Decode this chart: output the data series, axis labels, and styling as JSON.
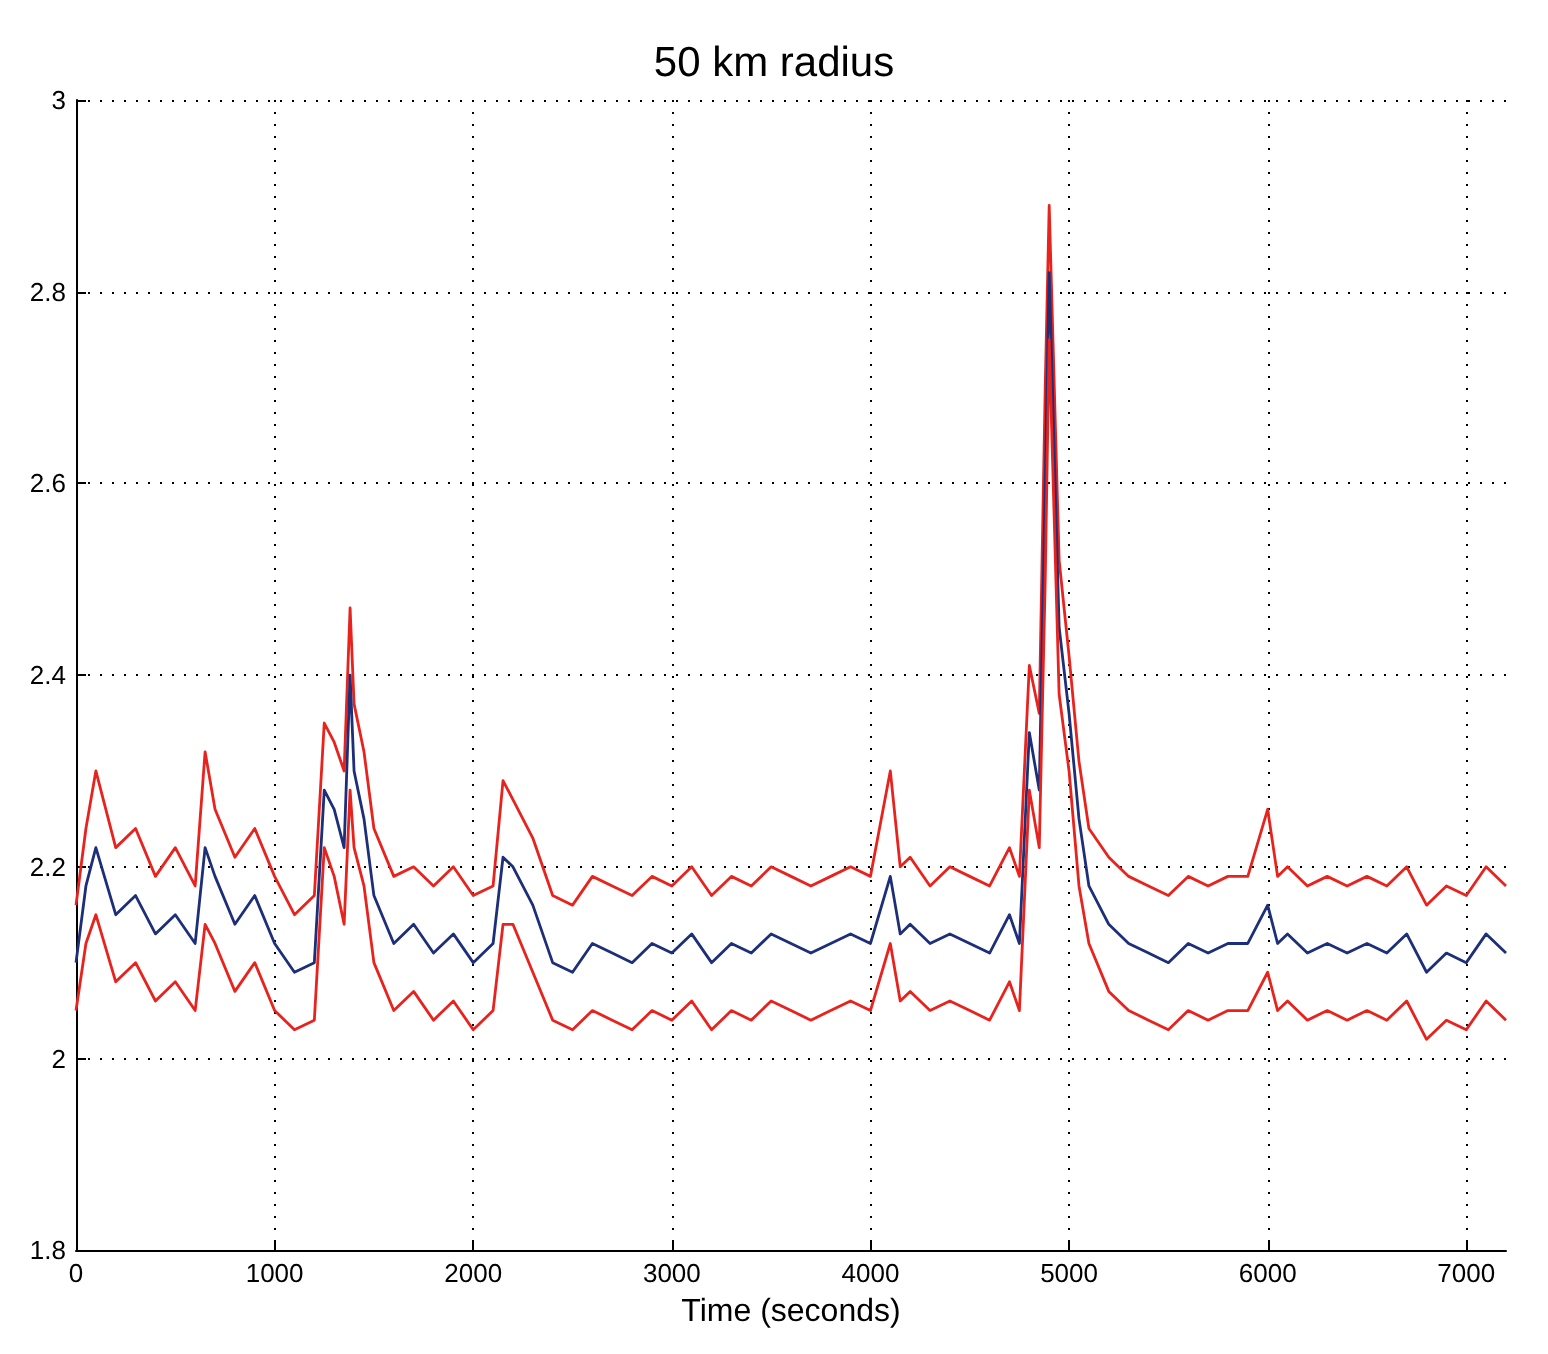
{
  "chart_data": {
    "type": "line",
    "title": "50 km radius",
    "xlabel": "Time (seconds)",
    "x": [
      0,
      50,
      100,
      200,
      300,
      400,
      500,
      600,
      650,
      700,
      800,
      900,
      1000,
      1100,
      1200,
      1250,
      1300,
      1350,
      1380,
      1400,
      1450,
      1500,
      1600,
      1700,
      1800,
      1900,
      2000,
      2100,
      2150,
      2200,
      2300,
      2400,
      2500,
      2600,
      2700,
      2800,
      2900,
      3000,
      3100,
      3200,
      3300,
      3400,
      3500,
      3600,
      3700,
      3800,
      3900,
      4000,
      4100,
      4150,
      4200,
      4300,
      4400,
      4500,
      4600,
      4700,
      4750,
      4800,
      4850,
      4880,
      4900,
      4950,
      5000,
      5050,
      5100,
      5200,
      5300,
      5400,
      5500,
      5600,
      5700,
      5800,
      5900,
      6000,
      6050,
      6100,
      6200,
      6300,
      6400,
      6500,
      6600,
      6700,
      6800,
      6900,
      7000,
      7100,
      7200
    ],
    "series": [
      {
        "color": "#e8231e",
        "values": [
          2.16,
          2.24,
          2.3,
          2.22,
          2.24,
          2.19,
          2.22,
          2.18,
          2.32,
          2.26,
          2.21,
          2.24,
          2.19,
          2.15,
          2.17,
          2.35,
          2.33,
          2.3,
          2.47,
          2.37,
          2.32,
          2.24,
          2.19,
          2.2,
          2.18,
          2.2,
          2.17,
          2.18,
          2.29,
          2.27,
          2.23,
          2.17,
          2.16,
          2.19,
          2.18,
          2.17,
          2.19,
          2.18,
          2.2,
          2.17,
          2.19,
          2.18,
          2.2,
          2.19,
          2.18,
          2.19,
          2.2,
          2.19,
          2.3,
          2.2,
          2.21,
          2.18,
          2.2,
          2.19,
          2.18,
          2.22,
          2.19,
          2.41,
          2.36,
          2.7,
          2.89,
          2.52,
          2.42,
          2.31,
          2.24,
          2.21,
          2.19,
          2.18,
          2.17,
          2.19,
          2.18,
          2.19,
          2.19,
          2.26,
          2.19,
          2.2,
          2.18,
          2.19,
          2.18,
          2.19,
          2.18,
          2.2,
          2.16,
          2.18,
          2.17,
          2.2,
          2.18
        ]
      },
      {
        "color": "#1c2f78",
        "values": [
          2.1,
          2.18,
          2.22,
          2.15,
          2.17,
          2.13,
          2.15,
          2.12,
          2.22,
          2.19,
          2.14,
          2.17,
          2.12,
          2.09,
          2.1,
          2.28,
          2.26,
          2.22,
          2.4,
          2.3,
          2.25,
          2.17,
          2.12,
          2.14,
          2.11,
          2.13,
          2.1,
          2.12,
          2.21,
          2.2,
          2.16,
          2.1,
          2.09,
          2.12,
          2.11,
          2.1,
          2.12,
          2.11,
          2.13,
          2.1,
          2.12,
          2.11,
          2.13,
          2.12,
          2.11,
          2.12,
          2.13,
          2.12,
          2.19,
          2.13,
          2.14,
          2.12,
          2.13,
          2.12,
          2.11,
          2.15,
          2.12,
          2.34,
          2.28,
          2.6,
          2.82,
          2.45,
          2.36,
          2.25,
          2.18,
          2.14,
          2.12,
          2.11,
          2.1,
          2.12,
          2.11,
          2.12,
          2.12,
          2.16,
          2.12,
          2.13,
          2.11,
          2.12,
          2.11,
          2.12,
          2.11,
          2.13,
          2.09,
          2.11,
          2.1,
          2.13,
          2.11
        ]
      },
      {
        "color": "#e8231e",
        "values": [
          2.05,
          2.12,
          2.15,
          2.08,
          2.1,
          2.06,
          2.08,
          2.05,
          2.14,
          2.12,
          2.07,
          2.1,
          2.05,
          2.03,
          2.04,
          2.22,
          2.19,
          2.14,
          2.28,
          2.22,
          2.18,
          2.1,
          2.05,
          2.07,
          2.04,
          2.06,
          2.03,
          2.05,
          2.14,
          2.14,
          2.09,
          2.04,
          2.03,
          2.05,
          2.04,
          2.03,
          2.05,
          2.04,
          2.06,
          2.03,
          2.05,
          2.04,
          2.06,
          2.05,
          2.04,
          2.05,
          2.06,
          2.05,
          2.12,
          2.06,
          2.07,
          2.05,
          2.06,
          2.05,
          2.04,
          2.08,
          2.05,
          2.28,
          2.22,
          2.5,
          2.75,
          2.38,
          2.3,
          2.18,
          2.12,
          2.07,
          2.05,
          2.04,
          2.03,
          2.05,
          2.04,
          2.05,
          2.05,
          2.09,
          2.05,
          2.06,
          2.04,
          2.05,
          2.04,
          2.05,
          2.04,
          2.06,
          2.02,
          2.04,
          2.03,
          2.06,
          2.04
        ]
      }
    ],
    "xlim": [
      0,
      7200
    ],
    "xticks": [
      0,
      1000,
      2000,
      3000,
      4000,
      5000,
      6000,
      7000
    ],
    "ylim": [
      1.8,
      3
    ],
    "yticks": [
      1.8,
      2,
      2.2,
      2.4,
      2.6,
      2.8,
      3
    ],
    "grid": true,
    "marker": "none",
    "line_style": "solid"
  }
}
